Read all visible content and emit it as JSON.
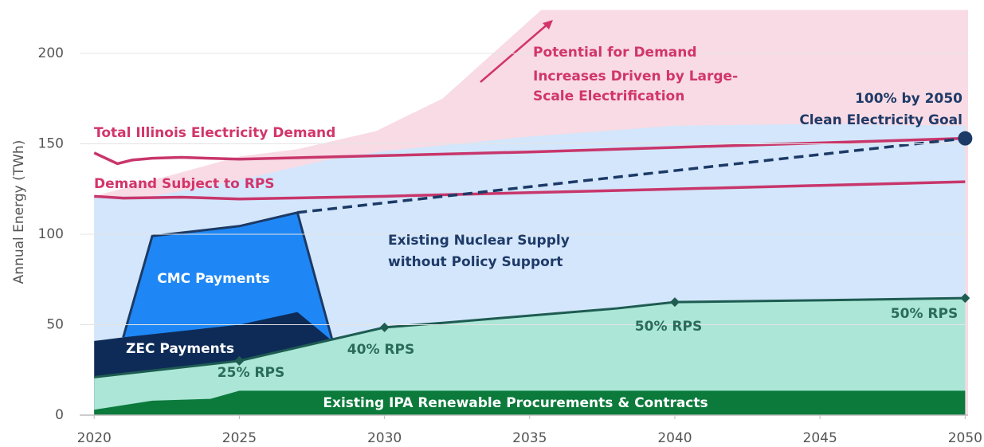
{
  "chart_data": {
    "type": "area",
    "y_label": "Annual Energy (TWh)",
    "xlim": [
      2019.5,
      2050.1
    ],
    "xticks": [
      2020,
      2025,
      2030,
      2035,
      2040,
      2045,
      2050
    ],
    "ylim": [
      0,
      224
    ],
    "yticks": [
      0,
      50,
      100,
      150,
      200
    ],
    "grid": true,
    "series": [
      {
        "name": [
          "Potential for Demand",
          "Increases Driven by Large-",
          "Scale Electrification"
        ],
        "type": "area",
        "color": "#f8dbe4",
        "label_color": "#d2356b",
        "x": [
          2020,
          2025,
          2027,
          2029.7,
          2032,
          2035.4,
          2050.1
        ],
        "values": [
          121,
          143,
          147,
          157,
          175,
          224,
          224
        ]
      },
      {
        "name": [
          "Existing Nuclear Supply",
          "without Policy Support"
        ],
        "type": "area",
        "color": "#d3e6fb",
        "label_color": "#1f3a68",
        "x": [
          2020,
          2022,
          2025,
          2028,
          2030,
          2035,
          2040,
          2045,
          2050
        ],
        "values": [
          121,
          121,
          130,
          141,
          146,
          154,
          160,
          161,
          160
        ]
      },
      {
        "name": [
          "CMC Payments"
        ],
        "type": "area",
        "color": "#1f87f5",
        "outline": "#1c3a66",
        "label_color": "#ffffff",
        "x": [
          2021,
          2022,
          2025,
          2027,
          2028.2
        ],
        "values": [
          43,
          99,
          104.5,
          112,
          41.5
        ]
      },
      {
        "name": [
          "ZEC Payments"
        ],
        "type": "area",
        "color": "#0e2b57",
        "label_color": "#ffffff",
        "x": [
          2020,
          2021,
          2025,
          2027,
          2028.2
        ],
        "values": [
          41,
          43,
          50,
          57,
          41
        ]
      },
      {
        "type": "area",
        "color": "#abe6d6",
        "outline": "#1e5c52",
        "label_color": "#2b6b5a",
        "x": [
          2020,
          2025,
          2030,
          2032,
          2035,
          2038,
          2040,
          2045,
          2050
        ],
        "values": [
          21,
          30,
          48.5,
          51,
          55,
          59,
          62.5,
          63.5,
          64.7
        ],
        "markers": {
          "x": [
            2025,
            2030,
            2040,
            2050
          ],
          "values": [
            30,
            48.5,
            62.5,
            64.7
          ],
          "labels": [
            "25% RPS",
            "40% RPS",
            "50% RPS",
            "50% RPS"
          ]
        }
      },
      {
        "name": [
          "Existing IPA Renewable Procurements & Contracts"
        ],
        "type": "area",
        "color": "#0b7a3b",
        "label_color": "#ffffff",
        "x": [
          2020,
          2022,
          2024,
          2025,
          2050
        ],
        "values": [
          3,
          8,
          9,
          13.5,
          13.5
        ]
      },
      {
        "name": [
          "Total Illinois Electricity Demand"
        ],
        "type": "line",
        "color": "#c8366b",
        "label_color": "#d2356b",
        "x": [
          2020,
          2020.8,
          2021.3,
          2022,
          2023,
          2025,
          2030,
          2035,
          2040,
          2045,
          2050
        ],
        "values": [
          145,
          139,
          141,
          142,
          142.5,
          141.5,
          143.5,
          145.5,
          148,
          150.5,
          153
        ]
      },
      {
        "name": [
          "Demand Subject to RPS"
        ],
        "type": "line",
        "color": "#c8366b",
        "label_color": "#d2356b",
        "x": [
          2020,
          2021,
          2023,
          2025,
          2030,
          2035,
          2040,
          2045,
          2050
        ],
        "values": [
          121,
          120,
          120.5,
          119.5,
          121,
          123,
          125,
          127,
          129
        ]
      },
      {
        "name": [
          "100% by 2050",
          "Clean Electricity Goal"
        ],
        "type": "line",
        "dash": true,
        "end_marker": true,
        "color": "#1c3a66",
        "label_color": "#1f3a68",
        "x": [
          2027,
          2050
        ],
        "values": [
          112,
          153
        ]
      }
    ]
  }
}
